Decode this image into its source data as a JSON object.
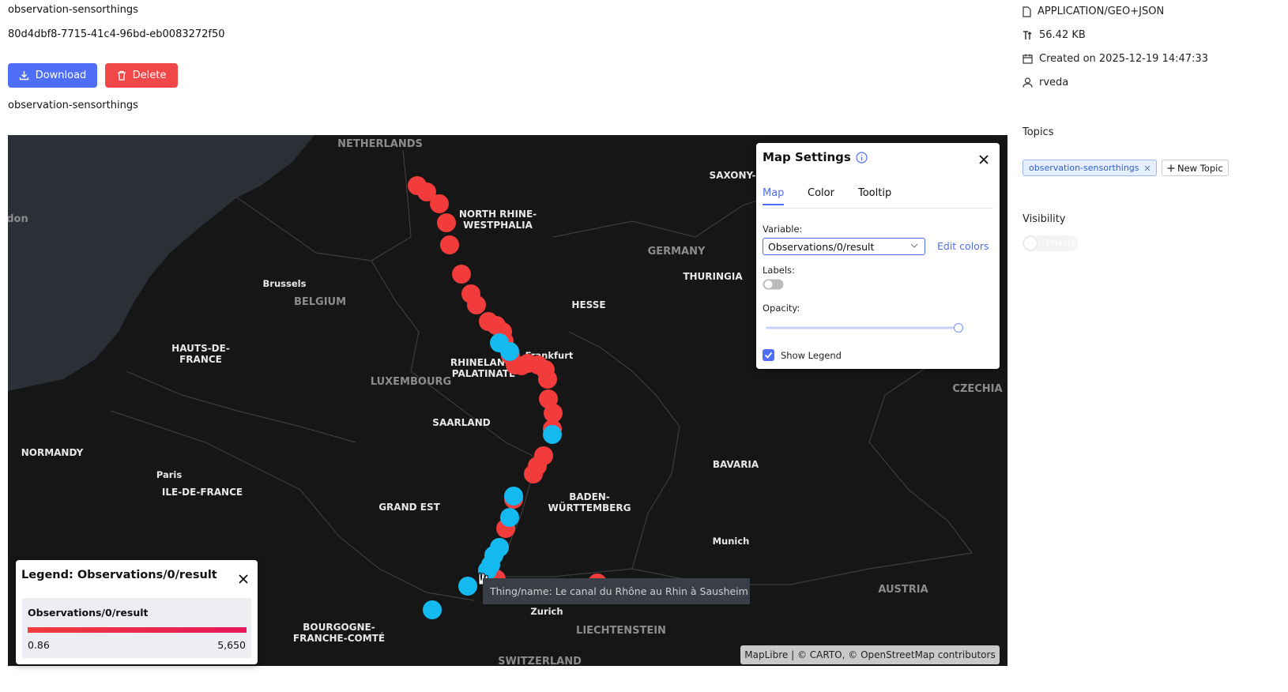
{
  "header": {
    "title": "observation-sensorthings",
    "id": "80d4dbf8-7715-41c4-96bd-eb0083272f50",
    "download": "Download",
    "delete": "Delete",
    "subtitle": "observation-sensorthings"
  },
  "map": {
    "labels": [
      [
        "NETHERLANDS"
      ],
      [
        "NORTH RHINE-",
        "WESTPHALIA"
      ],
      [
        "Brussels"
      ],
      [
        "BELGIUM"
      ],
      [
        "GERMANY"
      ],
      [
        "THURINGIA"
      ],
      [
        "SAXONY-"
      ],
      [
        "HESSE"
      ],
      [
        "HAUTS-DE-",
        "FRANCE"
      ],
      [
        "Frankfurt"
      ],
      [
        "RHINELAND-",
        "PALATINATE"
      ],
      [
        "LUXEMBOURG"
      ],
      [
        "SAARLAND"
      ],
      [
        "NORMANDY"
      ],
      [
        "Paris"
      ],
      [
        "ILE-DE-FRANCE"
      ],
      [
        "GRAND EST"
      ],
      [
        "BADEN-",
        "WÜRTTEMBERG"
      ],
      [
        "BAVARIA"
      ],
      [
        "Munich"
      ],
      [
        "CZECHIA"
      ],
      [
        "AUSTRIA"
      ],
      [
        "Zurich"
      ],
      [
        "LIECHTENSTEIN"
      ],
      [
        "SWITZERLAND"
      ],
      [
        "BOURGOGNE-",
        "FRANCHE-COMTÉ"
      ],
      [
        "don"
      ]
    ],
    "tooltip": "Thing/name: Le canal du Rhône au Rhin à Sausheim",
    "attribution": "MapLibre | © CARTO, © OpenStreetMap contributors"
  },
  "settings": {
    "title": "Map Settings",
    "tabs": [
      "Map",
      "Color",
      "Tooltip"
    ],
    "variable_label": "Variable:",
    "variable": "Observations/0/result",
    "edit_colors": "Edit colors",
    "labels_label": "Labels:",
    "opacity_label": "Opacity:",
    "show_legend": "Show Legend"
  },
  "legend": {
    "title": "Legend: Observations/0/result",
    "variable": "Observations/0/result",
    "min": "0.86",
    "max": "5,650"
  },
  "sidebar": {
    "format": "APPLICATION/GEO+JSON",
    "size": "56.42 KB",
    "created": "Created on 2025-12-19 14:47:33",
    "owner": "rveda",
    "topics_title": "Topics",
    "topic": "observation-sensorthings",
    "new_topic": "New Topic",
    "visibility_title": "Visibility",
    "visibility": "Private"
  }
}
